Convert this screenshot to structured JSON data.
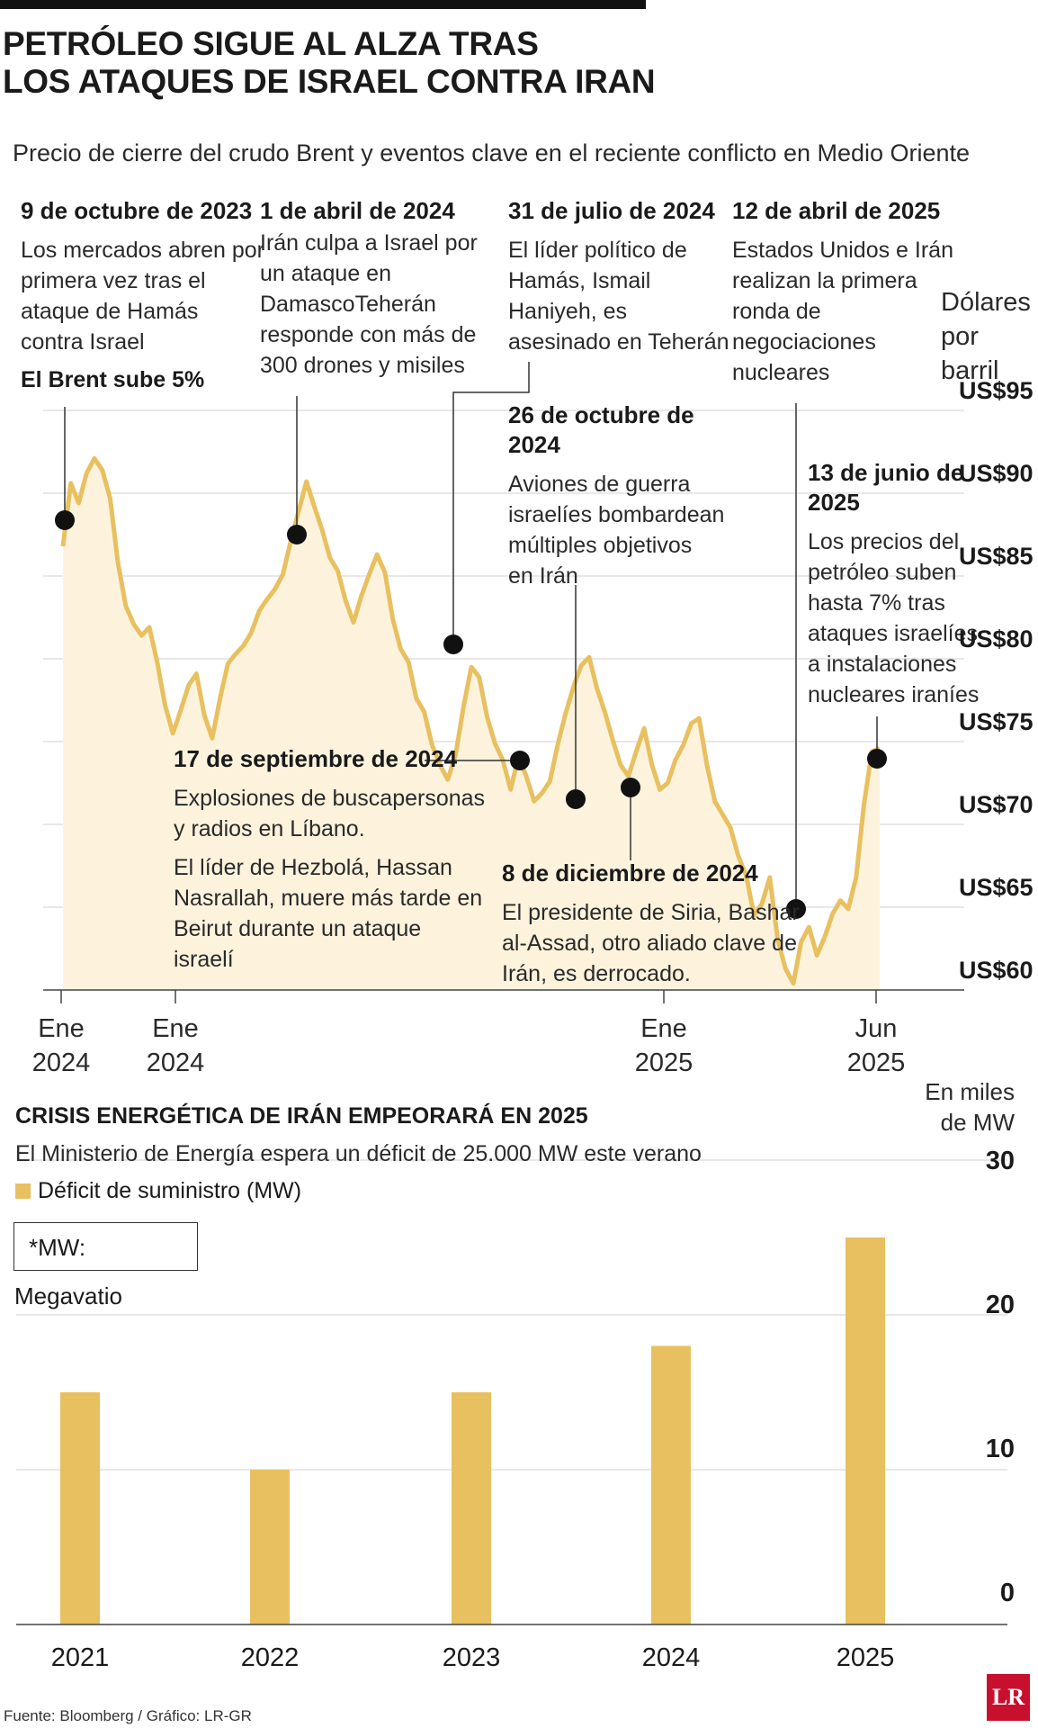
{
  "header": {
    "title_line1": "PETRÓLEO SIGUE AL ALZA TRAS",
    "title_line2": "LOS ATAQUES DE ISRAEL CONTRA IRAN",
    "subtitle": "Precio de cierre del crudo Brent y eventos clave en el reciente conflicto en Medio Oriente"
  },
  "events": [
    {
      "date": "9 de octubre de 2023",
      "lines": [
        "Los mercados abren por",
        "primera vez tras el",
        "ataque de Hamás",
        "contra Israel"
      ],
      "note": "El Brent sube 5%"
    },
    {
      "date": "1 de abril de 2024",
      "lines": [
        "Irán culpa a Israel por",
        "un ataque en",
        "DamascoTeherán",
        "responde con más de",
        "300 drones y misiles"
      ]
    },
    {
      "date": "31 de julio de 2024",
      "lines": [
        "El líder político de",
        "Hamás, Ismail",
        "Haniyeh, es",
        "asesinado en Teherán"
      ]
    },
    {
      "date": "12 de abril de 2025",
      "lines": [
        "Estados Unidos e Irán",
        "realizan la primera",
        "ronda de",
        "negociaciones",
        "nucleares"
      ]
    },
    {
      "date_lines": [
        "26 de octubre de",
        "2024"
      ],
      "lines": [
        "Aviones de guerra",
        "israelíes bombardean",
        "múltiples objetivos",
        "en Irán"
      ]
    },
    {
      "date_lines": [
        "13 de junio de",
        "2025"
      ],
      "lines": [
        "Los precios del",
        "petróleo suben",
        "hasta 7% tras",
        "ataques israelíes",
        "a instalaciones",
        "nucleares iraníes"
      ]
    },
    {
      "date": "17 de septiembre de 2024",
      "lines": [
        "Explosiones de buscapersonas",
        "y radios en Líbano."
      ],
      "lines2": [
        "El líder de Hezbolá, Hassan",
        "Nasrallah, muere más tarde en",
        "Beirut durante un ataque",
        "israelí"
      ]
    },
    {
      "date": "8 de diciembre de 2024",
      "lines": [
        "El presidente de Siria, Bashar",
        "al-Assad, otro aliado clave de",
        "Irán, es derrocado."
      ]
    }
  ],
  "price_unit": [
    "Dólares",
    "por barril"
  ],
  "y_ticks": [
    "US$95",
    "US$90",
    "US$85",
    "US$80",
    "US$75",
    "US$70",
    "US$65",
    "US$60"
  ],
  "x_ticks": [
    [
      "Ene",
      "2024"
    ],
    [
      "Ene",
      "2024"
    ],
    [
      "Ene",
      "2025"
    ],
    [
      "Jun",
      "2025"
    ]
  ],
  "colors": {
    "line": "#e8c060",
    "area": "#fdf3dd",
    "bar": "#e8c060",
    "marker": "#111111",
    "grid": "#d9d9d9",
    "logo": "#c8102e"
  },
  "chart_data": [
    {
      "type": "line",
      "series": [
        {
          "values": [
            86.8,
            90.6,
            89.4,
            91.2,
            92.1,
            91.4,
            89.7,
            85.8,
            83.2,
            82.1,
            81.4,
            81.9,
            79.8,
            77.2,
            75.5,
            76.9,
            78.4,
            79.1,
            76.6,
            75.2,
            77.6,
            79.7,
            80.3,
            80.8,
            81.6,
            82.9,
            83.6,
            84.2,
            85.1,
            87.1,
            88.9,
            90.7,
            89.2,
            87.8,
            86.1,
            85.3,
            83.5,
            82.2,
            83.8,
            85.1,
            86.3,
            85.2,
            82.4,
            80.6,
            79.8,
            77.6,
            76.8,
            74.8,
            73.6,
            72.7,
            74.2,
            77.1,
            79.5,
            78.9,
            76.5,
            74.9,
            73.9,
            72.1,
            74.1,
            72.9,
            71.4,
            71.9,
            72.6,
            74.8,
            76.7,
            78.3,
            79.6,
            80.1,
            78.2,
            76.8,
            75.1,
            73.6,
            72.9,
            74.4,
            75.8,
            73.6,
            72.1,
            72.5,
            73.9,
            74.8,
            76.1,
            76.4,
            73.6,
            71.4,
            70.6,
            69.8,
            68.1,
            66.9,
            64.5,
            65.2,
            66.8,
            63.1,
            61.3,
            60.4,
            62.9,
            63.8,
            62.1,
            63.2,
            64.6,
            65.4,
            64.9,
            66.8,
            71.2,
            74.4,
            74.6
          ],
          "ylim": [
            60,
            95
          ]
        }
      ],
      "markers": [
        {
          "label": "9 de octubre de 2023",
          "value": 88.2
        },
        {
          "label": "1 de abril de 2024",
          "value": 89.0
        },
        {
          "label": "31 de julio de 2024",
          "value": 80.7
        },
        {
          "label": "17 de septiembre de 2024",
          "value": 73.7
        },
        {
          "label": "26 de octubre de 2024",
          "value": 71.4
        },
        {
          "label": "8 de diciembre de 2024",
          "value": 72.1
        },
        {
          "label": "12 de abril de 2025",
          "value": 64.8
        },
        {
          "label": "13 de junio de 2025",
          "value": 74.6
        }
      ]
    },
    {
      "type": "bar",
      "title": "CRISIS ENERGÉTICA DE IRÁN EMPEORARÁ EN 2025",
      "subtitle": "El Ministerio de Energía espera un déficit de 25.000 MW este verano",
      "categories": [
        "2021",
        "2022",
        "2023",
        "2024",
        "2025"
      ],
      "series": [
        {
          "name": "Déficit de suministro (MW)",
          "values": [
            15,
            10,
            15,
            18,
            25
          ]
        }
      ],
      "ylabel": "En miles de MW",
      "ylim": [
        0,
        30
      ],
      "y_ticks": [
        "30",
        "20",
        "10",
        "0"
      ]
    }
  ],
  "bar_chart": {
    "title": "CRISIS ENERGÉTICA DE IRÁN EMPEORARÁ EN 2025",
    "subtitle": "El Ministerio de Energía espera un déficit de 25.000 MW este verano",
    "legend": "Déficit de suministro (MW)",
    "note": "*MW: Megavatio",
    "unit": [
      "En miles",
      "de MW"
    ]
  },
  "footer": {
    "source": "Fuente: Bloomberg / Gráfico: LR-GR",
    "logo": "LR"
  }
}
